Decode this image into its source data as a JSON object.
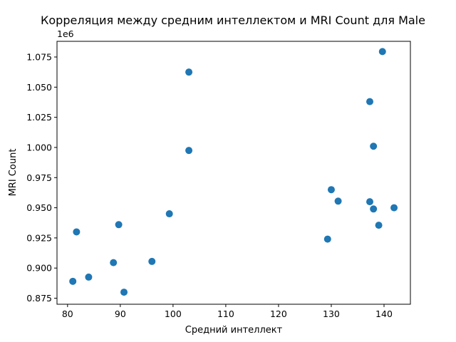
{
  "chart_data": {
    "type": "scatter",
    "title": "Корреляция между средним интеллектом и MRI Count для Male",
    "xlabel": "Средний интеллект",
    "ylabel": "MRI Count",
    "y_offset_text": "1e6",
    "xlim": [
      78.0,
      145.0
    ],
    "ylim": [
      870000,
      1088000
    ],
    "x_ticks": [
      80,
      90,
      100,
      110,
      120,
      130,
      140
    ],
    "x_tick_labels": [
      "80",
      "90",
      "100",
      "110",
      "120",
      "130",
      "140"
    ],
    "y_ticks": [
      875000,
      900000,
      925000,
      950000,
      975000,
      1000000,
      1025000,
      1050000,
      1075000
    ],
    "y_tick_labels": [
      "0.875",
      "0.900",
      "0.925",
      "0.950",
      "0.975",
      "1.000",
      "1.025",
      "1.050",
      "1.075"
    ],
    "grid": false,
    "color": "#1f77b4",
    "points": [
      {
        "x": 81.0,
        "y": 889000
      },
      {
        "x": 81.7,
        "y": 930000
      },
      {
        "x": 84.0,
        "y": 892500
      },
      {
        "x": 88.7,
        "y": 904500
      },
      {
        "x": 89.7,
        "y": 936000
      },
      {
        "x": 90.7,
        "y": 880000
      },
      {
        "x": 96.0,
        "y": 905500
      },
      {
        "x": 99.3,
        "y": 945000
      },
      {
        "x": 103.0,
        "y": 1062500
      },
      {
        "x": 103.0,
        "y": 997500
      },
      {
        "x": 129.3,
        "y": 924000
      },
      {
        "x": 130.0,
        "y": 965000
      },
      {
        "x": 131.3,
        "y": 955500
      },
      {
        "x": 137.3,
        "y": 1038000
      },
      {
        "x": 137.3,
        "y": 955000
      },
      {
        "x": 138.0,
        "y": 1001000
      },
      {
        "x": 138.0,
        "y": 949000
      },
      {
        "x": 139.0,
        "y": 935500
      },
      {
        "x": 139.7,
        "y": 1079500
      },
      {
        "x": 141.9,
        "y": 950000
      }
    ]
  }
}
